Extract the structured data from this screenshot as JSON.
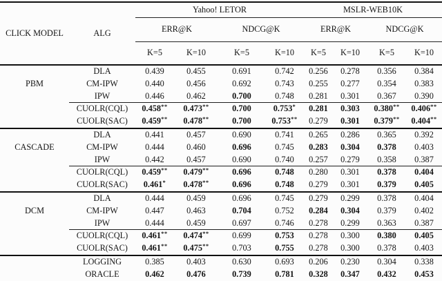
{
  "header": {
    "click_model": "CLICK MODEL",
    "alg": "ALG",
    "datasets": [
      "Yahoo! LETOR",
      "MSLR-WEB10K"
    ],
    "metrics": [
      "ERR@K",
      "NDCG@K",
      "ERR@K",
      "NDCG@K"
    ],
    "k_labels": [
      "K=5",
      "K=10",
      "K=5",
      "K=10",
      "K=5",
      "K=10",
      "K=5",
      "K=10"
    ]
  },
  "groups": [
    {
      "name": "PBM",
      "rows": [
        {
          "cm": {
            "text": "PBM",
            "span": 3
          },
          "alg": "DLA",
          "cells": [
            {
              "v": "0.439"
            },
            {
              "v": "0.455"
            },
            {
              "v": "0.691"
            },
            {
              "v": "0.742"
            },
            {
              "v": "0.256"
            },
            {
              "v": "0.278"
            },
            {
              "v": "0.356"
            },
            {
              "v": "0.384"
            }
          ]
        },
        {
          "alg": "CM-IPW",
          "cells": [
            {
              "v": "0.440"
            },
            {
              "v": "0.456"
            },
            {
              "v": "0.692"
            },
            {
              "v": "0.743"
            },
            {
              "v": "0.255"
            },
            {
              "v": "0.277"
            },
            {
              "v": "0.354"
            },
            {
              "v": "0.383"
            }
          ]
        },
        {
          "alg": "IPW",
          "cells": [
            {
              "v": "0.446"
            },
            {
              "v": "0.462"
            },
            {
              "v": "0.700",
              "b": true
            },
            {
              "v": "0.748"
            },
            {
              "v": "0.281"
            },
            {
              "v": "0.301"
            },
            {
              "v": "0.367"
            },
            {
              "v": "0.390"
            }
          ]
        },
        {
          "cm": {
            "text": "",
            "span": 2
          },
          "rule": true,
          "alg": "CUOLR(CQL)",
          "cells": [
            {
              "v": "0.458",
              "b": true,
              "s": "**"
            },
            {
              "v": "0.473",
              "b": true,
              "s": "**"
            },
            {
              "v": "0.700",
              "b": true
            },
            {
              "v": "0.753",
              "b": true,
              "s": "*"
            },
            {
              "v": "0.281",
              "b": true
            },
            {
              "v": "0.303",
              "b": true
            },
            {
              "v": "0.380",
              "b": true,
              "s": "**"
            },
            {
              "v": "0.406",
              "b": true,
              "s": "**"
            }
          ]
        },
        {
          "alg": "CUOLR(SAC)",
          "cells": [
            {
              "v": "0.459",
              "b": true,
              "s": "**"
            },
            {
              "v": "0.478",
              "b": true,
              "s": "**"
            },
            {
              "v": "0.700",
              "b": true
            },
            {
              "v": "0.753",
              "b": true,
              "s": "**"
            },
            {
              "v": "0.279"
            },
            {
              "v": "0.301",
              "b": true
            },
            {
              "v": "0.379",
              "b": true,
              "s": "**"
            },
            {
              "v": "0.404",
              "b": true,
              "s": "**"
            }
          ]
        }
      ]
    },
    {
      "name": "CASCADE",
      "rows": [
        {
          "cm": {
            "text": "CASCADE",
            "span": 3
          },
          "alg": "DLA",
          "cells": [
            {
              "v": "0.441"
            },
            {
              "v": "0.457"
            },
            {
              "v": "0.690"
            },
            {
              "v": "0.741"
            },
            {
              "v": "0.265"
            },
            {
              "v": "0.286"
            },
            {
              "v": "0.365"
            },
            {
              "v": "0.392"
            }
          ]
        },
        {
          "alg": "CM-IPW",
          "cells": [
            {
              "v": "0.444"
            },
            {
              "v": "0.460"
            },
            {
              "v": "0.696",
              "b": true
            },
            {
              "v": "0.745"
            },
            {
              "v": "0.283",
              "b": true
            },
            {
              "v": "0.304",
              "b": true
            },
            {
              "v": "0.378",
              "b": true
            },
            {
              "v": "0.403"
            }
          ]
        },
        {
          "alg": "IPW",
          "cells": [
            {
              "v": "0.442"
            },
            {
              "v": "0.457"
            },
            {
              "v": "0.690"
            },
            {
              "v": "0.740"
            },
            {
              "v": "0.257"
            },
            {
              "v": "0.279"
            },
            {
              "v": "0.358"
            },
            {
              "v": "0.387"
            }
          ]
        },
        {
          "cm": {
            "text": "",
            "span": 2
          },
          "rule": true,
          "alg": "CUOLR(CQL)",
          "cells": [
            {
              "v": "0.459",
              "b": true,
              "s": "**"
            },
            {
              "v": "0.479",
              "b": true,
              "s": "**"
            },
            {
              "v": "0.696",
              "b": true
            },
            {
              "v": "0.748",
              "b": true
            },
            {
              "v": "0.280"
            },
            {
              "v": "0.301"
            },
            {
              "v": "0.378",
              "b": true
            },
            {
              "v": "0.404",
              "b": true
            }
          ]
        },
        {
          "alg": "CUOLR(SAC)",
          "cells": [
            {
              "v": "0.461",
              "b": true,
              "s": "*"
            },
            {
              "v": "0.478",
              "b": true,
              "s": "**"
            },
            {
              "v": "0.696",
              "b": true
            },
            {
              "v": "0.748",
              "b": true
            },
            {
              "v": "0.279"
            },
            {
              "v": "0.301"
            },
            {
              "v": "0.379",
              "b": true
            },
            {
              "v": "0.405",
              "b": true
            }
          ]
        }
      ]
    },
    {
      "name": "DCM",
      "rows": [
        {
          "cm": {
            "text": "DCM",
            "span": 3
          },
          "alg": "DLA",
          "cells": [
            {
              "v": "0.444"
            },
            {
              "v": "0.459"
            },
            {
              "v": "0.696"
            },
            {
              "v": "0.745"
            },
            {
              "v": "0.279"
            },
            {
              "v": "0.299"
            },
            {
              "v": "0.378"
            },
            {
              "v": "0.404"
            }
          ]
        },
        {
          "alg": "CM-IPW",
          "cells": [
            {
              "v": "0.447"
            },
            {
              "v": "0.463"
            },
            {
              "v": "0.704",
              "b": true
            },
            {
              "v": "0.752"
            },
            {
              "v": "0.284",
              "b": true
            },
            {
              "v": "0.304",
              "b": true
            },
            {
              "v": "0.379"
            },
            {
              "v": "0.402"
            }
          ]
        },
        {
          "alg": "IPW",
          "cells": [
            {
              "v": "0.444"
            },
            {
              "v": "0.459"
            },
            {
              "v": "0.697"
            },
            {
              "v": "0.746"
            },
            {
              "v": "0.278"
            },
            {
              "v": "0.299"
            },
            {
              "v": "0.363"
            },
            {
              "v": "0.387"
            }
          ]
        },
        {
          "cm": {
            "text": "",
            "span": 2
          },
          "rule": true,
          "alg": "CUOLR(CQL)",
          "cells": [
            {
              "v": "0.461",
              "b": true,
              "s": "**"
            },
            {
              "v": "0.474",
              "b": true,
              "s": "**"
            },
            {
              "v": "0.699"
            },
            {
              "v": "0.753",
              "b": true
            },
            {
              "v": "0.278"
            },
            {
              "v": "0.300"
            },
            {
              "v": "0.380",
              "b": true
            },
            {
              "v": "0.405",
              "b": true
            }
          ]
        },
        {
          "alg": "CUOLR(SAC)",
          "cells": [
            {
              "v": "0.461",
              "b": true,
              "s": "**"
            },
            {
              "v": "0.475",
              "b": true,
              "s": "**"
            },
            {
              "v": "0.703"
            },
            {
              "v": "0.755",
              "b": true
            },
            {
              "v": "0.278"
            },
            {
              "v": "0.300"
            },
            {
              "v": "0.378"
            },
            {
              "v": "0.403"
            }
          ]
        }
      ]
    },
    {
      "name": "",
      "rows": [
        {
          "cm": {
            "text": "",
            "span": 2
          },
          "alg": "LOGGING",
          "cells": [
            {
              "v": "0.385"
            },
            {
              "v": "0.403"
            },
            {
              "v": "0.630"
            },
            {
              "v": "0.693"
            },
            {
              "v": "0.206"
            },
            {
              "v": "0.230"
            },
            {
              "v": "0.304"
            },
            {
              "v": "0.338"
            }
          ]
        },
        {
          "alg": "ORACLE",
          "cells": [
            {
              "v": "0.462",
              "b": true
            },
            {
              "v": "0.476",
              "b": true
            },
            {
              "v": "0.739",
              "b": true
            },
            {
              "v": "0.781",
              "b": true
            },
            {
              "v": "0.328",
              "b": true
            },
            {
              "v": "0.347",
              "b": true
            },
            {
              "v": "0.432",
              "b": true
            },
            {
              "v": "0.453",
              "b": true
            }
          ]
        }
      ]
    }
  ]
}
